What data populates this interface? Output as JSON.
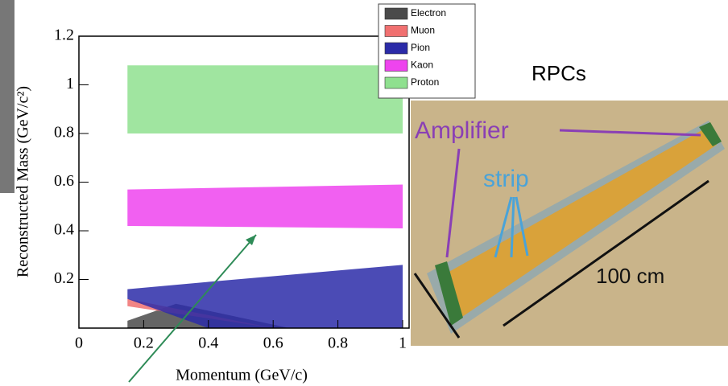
{
  "chart_data": {
    "type": "band",
    "xlabel": "Momentum (GeV/c)",
    "ylabel": "Reconstructed Mass (GeV/c²)",
    "xlim": [
      0,
      1
    ],
    "xticks": [
      0,
      0.2,
      0.4,
      0.6,
      0.8,
      1
    ],
    "ylim": [
      0,
      1.2
    ],
    "yticks": [
      0.2,
      0.4,
      0.6,
      0.8,
      1,
      1.2
    ],
    "legend": "top-right",
    "series": [
      {
        "name": "Electron",
        "color": "#4a4a4a",
        "x": [
          0.15,
          0.3,
          0.65
        ],
        "upper": [
          0.03,
          0.1,
          0
        ],
        "lower": [
          0,
          0,
          0
        ]
      },
      {
        "name": "Muon",
        "color": "#f07070",
        "x": [
          0.15,
          0.6
        ],
        "upper": [
          0.12,
          0
        ],
        "lower": [
          0.09,
          0
        ]
      },
      {
        "name": "Pion",
        "color": "#2b2ba8",
        "x": [
          0.15,
          0.4,
          1
        ],
        "upper": [
          0.16,
          0.19,
          0.26
        ],
        "lower": [
          0.12,
          0,
          0
        ]
      },
      {
        "name": "Kaon",
        "color": "#ee44ee",
        "x": [
          0.15,
          1
        ],
        "upper": [
          0.57,
          0.59
        ],
        "lower": [
          0.42,
          0.41
        ]
      },
      {
        "name": "Proton",
        "color": "#8fe08f",
        "x": [
          0.15,
          1
        ],
        "upper": [
          1.08,
          1.08
        ],
        "lower": [
          0.8,
          0.8
        ]
      }
    ]
  },
  "photo": {
    "title": "RPCs",
    "labels": [
      "Amplifier",
      "strip",
      "100 cm"
    ]
  }
}
